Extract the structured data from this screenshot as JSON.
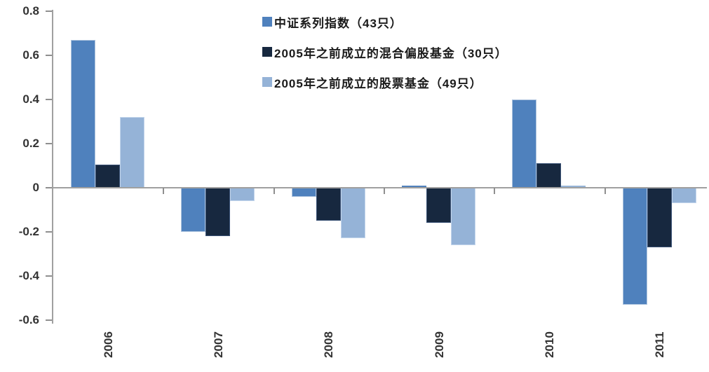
{
  "chart_data": {
    "type": "bar",
    "categories": [
      "2006",
      "2007",
      "2008",
      "2009",
      "2010",
      "2011"
    ],
    "series": [
      {
        "name": "中证系列指数（43只）",
        "color": "#4F81BD",
        "border_color": "#AEC4DE",
        "values": [
          0.67,
          -0.2,
          -0.04,
          0.01,
          0.4,
          -0.53
        ]
      },
      {
        "name": "2005年之前成立的混合偏股基金（30只）",
        "color": "#17283F",
        "border_color": "#3A5276",
        "values": [
          0.105,
          -0.22,
          -0.15,
          -0.16,
          0.11,
          -0.27
        ]
      },
      {
        "name": "2005年之前成立的股票基金（49只）",
        "color": "#95B3D7",
        "border_color": "#C4D6EC",
        "values": [
          0.32,
          -0.06,
          -0.23,
          -0.26,
          0.01,
          -0.07
        ]
      }
    ],
    "title": "",
    "xlabel": "",
    "ylabel": "",
    "ylim": [
      -0.6,
      0.8
    ],
    "yticks": [
      0.8,
      0.6,
      0.4,
      0.2,
      0,
      -0.2,
      -0.4,
      -0.6
    ],
    "ytick_labels": [
      "0.8",
      "0.6",
      "0.4",
      "0.2",
      "0",
      "-0.2",
      "-0.4",
      "-0.6"
    ],
    "grid": false,
    "legend_position": "top-center",
    "x_label_rotation_deg": -90
  },
  "colors": {
    "axis_line": "#a0a0a0",
    "tick_text": "#333333",
    "legend_text": "#1a1a1a",
    "background": "#ffffff"
  }
}
